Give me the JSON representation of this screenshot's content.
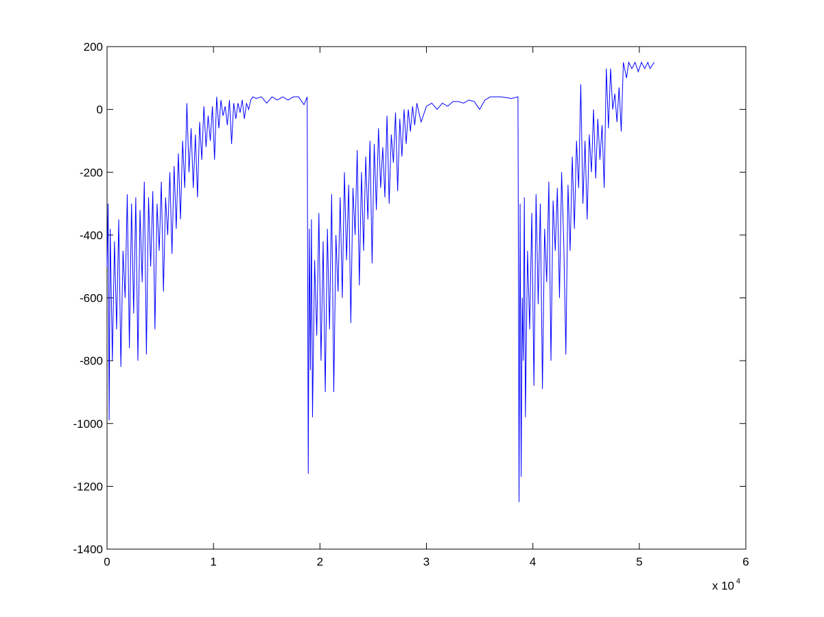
{
  "chart_data": {
    "type": "line",
    "x_multiplier": "x 10",
    "x_multiplier_exponent": "4",
    "color": "#0000ff",
    "xlim": [
      0,
      6
    ],
    "xticks": [
      0,
      1,
      2,
      3,
      4,
      5,
      6
    ],
    "ylim": [
      -1400,
      200
    ],
    "yticks": [
      -1400,
      -1200,
      -1000,
      -800,
      -600,
      -400,
      -200,
      0,
      200
    ],
    "grid": false,
    "x": [
      0,
      0.01,
      0.02,
      0.03,
      0.05,
      0.07,
      0.09,
      0.11,
      0.13,
      0.15,
      0.17,
      0.19,
      0.21,
      0.23,
      0.25,
      0.27,
      0.29,
      0.31,
      0.33,
      0.35,
      0.37,
      0.39,
      0.41,
      0.43,
      0.45,
      0.47,
      0.49,
      0.51,
      0.53,
      0.55,
      0.57,
      0.59,
      0.61,
      0.63,
      0.65,
      0.67,
      0.69,
      0.71,
      0.73,
      0.75,
      0.77,
      0.79,
      0.81,
      0.83,
      0.85,
      0.87,
      0.89,
      0.91,
      0.93,
      0.95,
      0.97,
      0.99,
      1.01,
      1.03,
      1.05,
      1.07,
      1.09,
      1.11,
      1.13,
      1.15,
      1.17,
      1.19,
      1.21,
      1.23,
      1.25,
      1.27,
      1.29,
      1.31,
      1.33,
      1.35,
      1.37,
      1.4,
      1.45,
      1.5,
      1.55,
      1.6,
      1.65,
      1.7,
      1.75,
      1.8,
      1.85,
      1.88,
      1.89,
      1.9,
      1.91,
      1.92,
      1.93,
      1.95,
      1.97,
      1.99,
      2.01,
      2.03,
      2.05,
      2.07,
      2.09,
      2.11,
      2.13,
      2.15,
      2.17,
      2.19,
      2.21,
      2.23,
      2.25,
      2.27,
      2.29,
      2.31,
      2.33,
      2.35,
      2.37,
      2.39,
      2.41,
      2.43,
      2.45,
      2.47,
      2.49,
      2.51,
      2.53,
      2.55,
      2.57,
      2.59,
      2.61,
      2.63,
      2.65,
      2.67,
      2.69,
      2.71,
      2.73,
      2.75,
      2.77,
      2.79,
      2.81,
      2.83,
      2.85,
      2.87,
      2.89,
      2.91,
      2.95,
      3.0,
      3.05,
      3.1,
      3.15,
      3.2,
      3.25,
      3.3,
      3.35,
      3.4,
      3.45,
      3.5,
      3.55,
      3.6,
      3.7,
      3.8,
      3.86,
      3.87,
      3.88,
      3.89,
      3.9,
      3.91,
      3.92,
      3.93,
      3.95,
      3.97,
      3.99,
      4.01,
      4.03,
      4.05,
      4.07,
      4.09,
      4.11,
      4.13,
      4.15,
      4.17,
      4.19,
      4.21,
      4.23,
      4.25,
      4.27,
      4.29,
      4.31,
      4.33,
      4.35,
      4.37,
      4.39,
      4.41,
      4.43,
      4.45,
      4.47,
      4.49,
      4.51,
      4.53,
      4.55,
      4.57,
      4.59,
      4.61,
      4.63,
      4.65,
      4.67,
      4.69,
      4.71,
      4.73,
      4.75,
      4.77,
      4.79,
      4.81,
      4.83,
      4.85,
      4.88,
      4.9,
      4.93,
      4.96,
      4.99,
      5.02,
      5.05,
      5.08,
      5.1,
      5.14
    ],
    "values": [
      -500,
      -300,
      -990,
      -380,
      -800,
      -420,
      -700,
      -350,
      -820,
      -450,
      -600,
      -270,
      -760,
      -300,
      -650,
      -280,
      -800,
      -320,
      -550,
      -230,
      -780,
      -280,
      -500,
      -260,
      -700,
      -300,
      -450,
      -230,
      -580,
      -280,
      -400,
      -200,
      -460,
      -180,
      -380,
      -140,
      -350,
      -100,
      -250,
      20,
      -200,
      -60,
      -250,
      -80,
      -280,
      -40,
      -160,
      10,
      -120,
      -20,
      -100,
      10,
      -160,
      40,
      -60,
      30,
      -20,
      10,
      -50,
      30,
      -110,
      20,
      -30,
      20,
      -10,
      30,
      -30,
      20,
      0,
      30,
      40,
      35,
      40,
      20,
      40,
      30,
      40,
      30,
      40,
      40,
      15,
      40,
      -1160,
      -380,
      -830,
      -350,
      -980,
      -480,
      -720,
      -330,
      -800,
      -420,
      -900,
      -380,
      -700,
      -270,
      -900,
      -400,
      -580,
      -280,
      -600,
      -200,
      -480,
      -240,
      -680,
      -250,
      -400,
      -130,
      -560,
      -200,
      -450,
      -150,
      -350,
      -100,
      -490,
      -110,
      -320,
      -60,
      -250,
      -120,
      -280,
      -20,
      -300,
      -80,
      -170,
      -10,
      -260,
      -30,
      -150,
      0,
      -110,
      0,
      -70,
      10,
      -50,
      20,
      -40,
      10,
      20,
      0,
      20,
      10,
      25,
      25,
      20,
      30,
      25,
      0,
      30,
      40,
      40,
      35,
      40,
      -1250,
      -300,
      -1170,
      -600,
      -800,
      -280,
      -980,
      -450,
      -700,
      -330,
      -880,
      -270,
      -620,
      -300,
      -890,
      -380,
      -550,
      -230,
      -800,
      -290,
      -450,
      -250,
      -600,
      -200,
      -420,
      -780,
      -240,
      -450,
      -150,
      -380,
      -100,
      -250,
      80,
      -300,
      -100,
      -350,
      -80,
      -200,
      0,
      -220,
      -30,
      -160,
      -50,
      -250,
      130,
      -60,
      130,
      0,
      50,
      -40,
      70,
      -70,
      150,
      100,
      150,
      130,
      150,
      120,
      150,
      130,
      150,
      130,
      150
    ]
  }
}
